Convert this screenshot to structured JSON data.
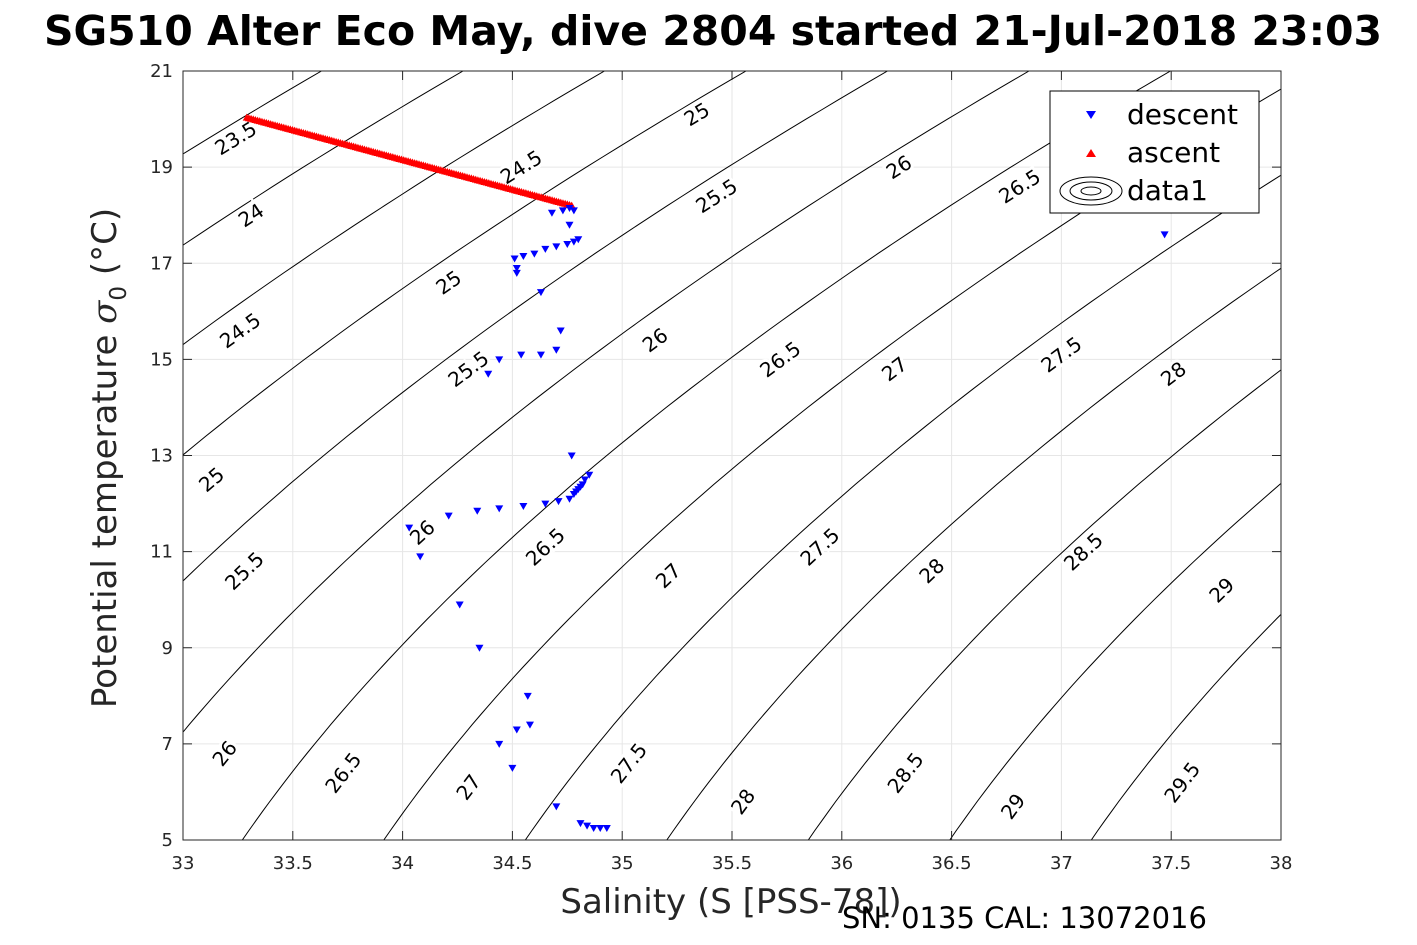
{
  "chart_data": {
    "type": "scatter",
    "title": "SG510 Alter Eco May, dive 2804 started 21-Jul-2018 23:03",
    "xlabel": "Salinity (S [PSS-78])",
    "ylabel": "Potential temperature σ₀ (°C)",
    "ylabel_main": "Potential temperature ",
    "ylabel_sigma": "σ",
    "ylabel_sub": "0",
    "ylabel_unit": " (°C)",
    "xlim": [
      33,
      38
    ],
    "ylim": [
      5,
      21
    ],
    "xticks": [
      "33",
      "33.5",
      "34",
      "34.5",
      "35",
      "35.5",
      "36",
      "36.5",
      "37",
      "37.5",
      "38"
    ],
    "yticks": [
      "5",
      "7",
      "9",
      "11",
      "13",
      "15",
      "17",
      "19",
      "21"
    ],
    "grid": true,
    "legend_position": "top-right",
    "legend": [
      {
        "label": "descent",
        "marker": "triangle-down",
        "color": "#0000ff"
      },
      {
        "label": "ascent",
        "marker": "triangle-up",
        "color": "#ff0000"
      },
      {
        "label": "data1",
        "marker": "contour",
        "color": "#000000"
      }
    ],
    "contour_levels": [
      23.5,
      24,
      24.5,
      25,
      25.5,
      26,
      26.5,
      27,
      27.5,
      28,
      28.5,
      29,
      29.5
    ],
    "contour_labels": [
      {
        "text": "23.5",
        "x": 33.24,
        "y": 19.6
      },
      {
        "text": "24",
        "x": 33.31,
        "y": 18.0
      },
      {
        "text": "24.5",
        "x": 34.54,
        "y": 19.0
      },
      {
        "text": "25",
        "x": 35.34,
        "y": 20.1
      },
      {
        "text": "24.5",
        "x": 33.26,
        "y": 15.6
      },
      {
        "text": "25",
        "x": 34.21,
        "y": 16.6
      },
      {
        "text": "25.5",
        "x": 35.43,
        "y": 18.4
      },
      {
        "text": "26",
        "x": 36.26,
        "y": 19.0
      },
      {
        "text": "26.5",
        "x": 36.81,
        "y": 18.6
      },
      {
        "text": "25",
        "x": 33.13,
        "y": 12.5
      },
      {
        "text": "25.5",
        "x": 34.3,
        "y": 14.8
      },
      {
        "text": "26",
        "x": 35.15,
        "y": 15.4
      },
      {
        "text": "26.5",
        "x": 35.72,
        "y": 15.0
      },
      {
        "text": "27",
        "x": 36.24,
        "y": 14.8
      },
      {
        "text": "27.5",
        "x": 37.0,
        "y": 15.1
      },
      {
        "text": "28",
        "x": 37.51,
        "y": 14.7
      },
      {
        "text": "25.5",
        "x": 33.28,
        "y": 10.6
      },
      {
        "text": "26",
        "x": 34.09,
        "y": 11.4
      },
      {
        "text": "26.5",
        "x": 34.65,
        "y": 11.1
      },
      {
        "text": "27",
        "x": 35.21,
        "y": 10.5
      },
      {
        "text": "27.5",
        "x": 35.9,
        "y": 11.1
      },
      {
        "text": "28",
        "x": 36.41,
        "y": 10.6
      },
      {
        "text": "28.5",
        "x": 37.1,
        "y": 11.0
      },
      {
        "text": "29",
        "x": 37.73,
        "y": 10.2
      },
      {
        "text": "26",
        "x": 33.19,
        "y": 6.8
      },
      {
        "text": "26.5",
        "x": 33.73,
        "y": 6.4
      },
      {
        "text": "27",
        "x": 34.3,
        "y": 6.1
      },
      {
        "text": "27.5",
        "x": 35.03,
        "y": 6.6
      },
      {
        "text": "28",
        "x": 35.55,
        "y": 5.8
      },
      {
        "text": "28.5",
        "x": 36.29,
        "y": 6.4
      },
      {
        "text": "29",
        "x": 36.78,
        "y": 5.7
      },
      {
        "text": "29.5",
        "x": 37.55,
        "y": 6.2
      }
    ],
    "series": [
      {
        "name": "descent",
        "marker": "triangle-down",
        "color": "#0000ff",
        "points": [
          [
            34.73,
            18.1
          ],
          [
            34.76,
            18.15
          ],
          [
            34.78,
            18.1
          ],
          [
            34.76,
            17.8
          ],
          [
            34.68,
            18.05
          ],
          [
            34.8,
            17.5
          ],
          [
            34.78,
            17.45
          ],
          [
            34.75,
            17.4
          ],
          [
            34.7,
            17.35
          ],
          [
            34.65,
            17.3
          ],
          [
            34.6,
            17.2
          ],
          [
            34.55,
            17.15
          ],
          [
            34.51,
            17.1
          ],
          [
            34.52,
            16.9
          ],
          [
            34.52,
            16.8
          ],
          [
            34.63,
            16.4
          ],
          [
            34.72,
            15.6
          ],
          [
            34.7,
            15.2
          ],
          [
            34.63,
            15.1
          ],
          [
            34.54,
            15.1
          ],
          [
            34.44,
            15.0
          ],
          [
            34.39,
            14.7
          ],
          [
            34.77,
            13.0
          ],
          [
            34.85,
            12.6
          ],
          [
            34.83,
            12.5
          ],
          [
            34.82,
            12.4
          ],
          [
            34.81,
            12.35
          ],
          [
            34.8,
            12.3
          ],
          [
            34.79,
            12.25
          ],
          [
            34.78,
            12.2
          ],
          [
            34.76,
            12.1
          ],
          [
            34.71,
            12.05
          ],
          [
            34.65,
            12.0
          ],
          [
            34.55,
            11.95
          ],
          [
            34.44,
            11.9
          ],
          [
            34.34,
            11.85
          ],
          [
            34.21,
            11.75
          ],
          [
            34.03,
            11.5
          ],
          [
            34.08,
            10.9
          ],
          [
            34.26,
            9.9
          ],
          [
            34.35,
            9.0
          ],
          [
            34.57,
            8.0
          ],
          [
            34.58,
            7.4
          ],
          [
            34.52,
            7.3
          ],
          [
            34.44,
            7.0
          ],
          [
            34.5,
            6.5
          ],
          [
            34.7,
            5.7
          ],
          [
            34.81,
            5.35
          ],
          [
            34.84,
            5.3
          ],
          [
            34.87,
            5.25
          ],
          [
            34.9,
            5.25
          ],
          [
            34.93,
            5.25
          ],
          [
            37.47,
            17.6
          ]
        ]
      },
      {
        "name": "ascent",
        "marker": "triangle-up",
        "color": "#ff0000",
        "from": [
          33.29,
          20.03
        ],
        "to": [
          34.77,
          18.2
        ],
        "count": 150
      }
    ]
  },
  "footer": "SN: 0135  CAL: 13072016"
}
